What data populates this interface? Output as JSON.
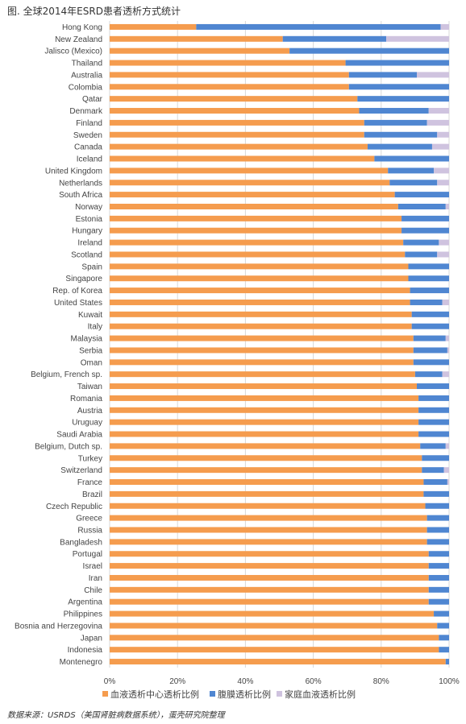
{
  "title": "图.  全球2014年ESRD患者透析方式统计",
  "source": "数据来源：USRDS（美国肾脏病数据系统），蛋壳研究院整理",
  "chart_data": {
    "type": "bar",
    "orientation": "horizontal",
    "stacked": "percent",
    "title": "图.  全球2014年ESRD患者透析方式统计",
    "categories": [
      "Hong Kong",
      "New Zealand",
      "Jalisco (Mexico)",
      "Thailand",
      "Australia",
      "Colombia",
      "Qatar",
      "Denmark",
      "Finland",
      "Sweden",
      "Canada",
      "Iceland",
      "United Kingdom",
      "Netherlands",
      "South Africa",
      "Norway",
      "Estonia",
      "Hungary",
      "Ireland",
      "Scotland",
      "Spain",
      "Singapore",
      "Rep. of Korea",
      "United States",
      "Kuwait",
      "Italy",
      "Malaysia",
      "Serbia",
      "Oman",
      "Belgium, French sp.",
      "Taiwan",
      "Romania",
      "Austria",
      "Uruguay",
      "Saudi Arabia",
      "Belgium, Dutch sp.",
      "Turkey",
      "Switzerland",
      "France",
      "Brazil",
      "Czech Republic",
      "Greece",
      "Russia",
      "Bangladesh",
      "Portugal",
      "Israel",
      "Iran",
      "Chile",
      "Argentina",
      "Philippines",
      "Bosnia and Herzegovina",
      "Japan",
      "Indonesia",
      "Montenegro"
    ],
    "series": [
      {
        "name": "血液透析中心透析比例",
        "color": "#F59C4E",
        "values": [
          25.5,
          51,
          53,
          69.5,
          70.5,
          70.5,
          73,
          73.5,
          75,
          75,
          76,
          78,
          82,
          82.5,
          84,
          85,
          86,
          86,
          86.5,
          87,
          88,
          88,
          88.5,
          88.5,
          89,
          89,
          89.5,
          89.5,
          89.5,
          90,
          90.5,
          91,
          91,
          91,
          91,
          91.5,
          92,
          92,
          92.5,
          92.5,
          93,
          93.5,
          93.5,
          93.5,
          94,
          94,
          94,
          94,
          94,
          95.5,
          96.5,
          97,
          97,
          99
        ]
      },
      {
        "name": "腹膜透析比例",
        "color": "#4F86D1",
        "values": [
          72,
          30.5,
          47,
          30.5,
          20,
          29.5,
          27,
          20.5,
          18.5,
          21.5,
          19,
          22,
          13.5,
          14,
          16,
          14,
          14,
          14,
          10.5,
          9.5,
          12,
          12,
          11.5,
          9.5,
          11,
          11,
          9.5,
          10,
          10.5,
          8,
          9.5,
          9,
          9,
          9,
          9,
          7.5,
          8,
          6.5,
          7,
          7.5,
          7,
          6.5,
          6.5,
          6.5,
          6,
          6,
          6,
          6,
          6,
          4.5,
          3.5,
          3,
          3,
          1
        ]
      },
      {
        "name": "家庭血液透析比例",
        "color": "#CFC3DF",
        "values": [
          2.5,
          18.5,
          0,
          0,
          9.5,
          0,
          0,
          6,
          6.5,
          3.5,
          5,
          0,
          4.5,
          3.5,
          0,
          1,
          0,
          0,
          3,
          3.5,
          0,
          0,
          0,
          2,
          0,
          0,
          1,
          0.5,
          0,
          2,
          0,
          0,
          0,
          0,
          0,
          1,
          0,
          1.5,
          0.5,
          0,
          0,
          0,
          0,
          0,
          0,
          0,
          0,
          0,
          0,
          0,
          0,
          0,
          0,
          0
        ]
      }
    ],
    "xlim": [
      0,
      100
    ],
    "ticks": [
      "0%",
      "20%",
      "40%",
      "60%",
      "80%",
      "100%"
    ],
    "grid": "x",
    "legend_position": "bottom"
  }
}
